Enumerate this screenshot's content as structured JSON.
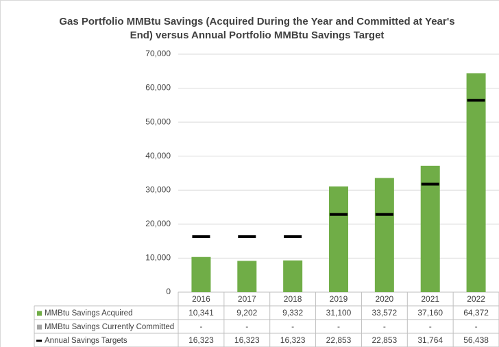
{
  "chart_data": {
    "type": "bar",
    "title": "Gas Portfolio MMBtu Savings (Acquired During the Year and Committed at Year's End) versus Annual Portfolio MMBtu Savings Target",
    "categories": [
      "2016",
      "2017",
      "2018",
      "2019",
      "2020",
      "2021",
      "2022"
    ],
    "series": [
      {
        "name": "MMBtu Savings Acquired",
        "color": "#70ad47",
        "values": [
          10341,
          9202,
          9332,
          31100,
          33572,
          37160,
          64372
        ],
        "value_labels": [
          "10,341",
          "9,202",
          "9,332",
          "31,100",
          "33,572",
          "37,160",
          "64,372"
        ]
      },
      {
        "name": "MMBtu Savings Currently Committed",
        "color": "#a5a5a5",
        "values": [
          null,
          null,
          null,
          null,
          null,
          null,
          null
        ],
        "value_labels": [
          "-",
          "-",
          "-",
          "-",
          "-",
          "-",
          "-"
        ]
      },
      {
        "name": "Annual Savings Targets",
        "color": "#000000",
        "marker": "dash",
        "values": [
          16323,
          16323,
          16323,
          22853,
          22853,
          31764,
          56438
        ],
        "value_labels": [
          "16,323",
          "16,323",
          "16,323",
          "22,853",
          "22,853",
          "31,764",
          "56,438"
        ]
      }
    ],
    "ylim": [
      0,
      70000
    ],
    "yticks": [
      0,
      {
        "value": 10000,
        "label": "10,000"
      },
      {
        "value": 20000,
        "label": "20,000"
      },
      {
        "value": 30000,
        "label": "30,000"
      },
      {
        "value": 40000,
        "label": "40,000"
      },
      {
        "value": 50000,
        "label": "50,000"
      },
      {
        "value": 60000,
        "label": "60,000"
      },
      {
        "value": 70000,
        "label": "70,000"
      }
    ],
    "grid": true
  }
}
